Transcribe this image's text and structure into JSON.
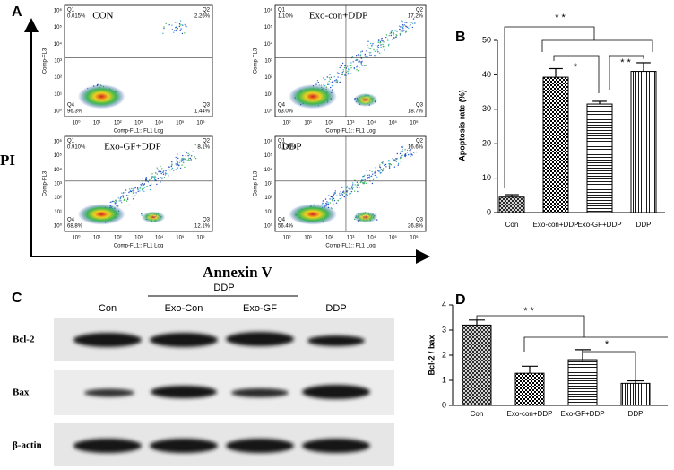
{
  "panel_a": {
    "label": "A",
    "y_axis_label": "PI",
    "x_axis_label": "Annexin V",
    "plot_y_label": "Comp-FL3",
    "plot_x_label": "Comp-FL1:: FL1 Log",
    "ticks": [
      "10⁰",
      "10¹",
      "10²",
      "10³",
      "10⁴",
      "10⁵",
      "10⁶"
    ],
    "plots": [
      {
        "title": "CON",
        "quadrants": [
          {
            "name": "Q1",
            "value": "0.015%"
          },
          {
            "name": "Q2",
            "value": "2.26%"
          },
          {
            "name": "Q4",
            "value": "96.3%"
          },
          {
            "name": "Q3",
            "value": "1.44%"
          }
        ]
      },
      {
        "title": "Exo-con+DDP",
        "quadrants": [
          {
            "name": "Q1",
            "value": "1.10%"
          },
          {
            "name": "Q2",
            "value": "17.2%"
          },
          {
            "name": "Q4",
            "value": "63.0%"
          },
          {
            "name": "Q3",
            "value": "18.7%"
          }
        ]
      },
      {
        "title": "Exo-GF+DDP",
        "quadrants": [
          {
            "name": "Q1",
            "value": "0.910%"
          },
          {
            "name": "Q2",
            "value": "8.1%"
          },
          {
            "name": "Q4",
            "value": "68.8%"
          },
          {
            "name": "Q3",
            "value": "12.1%"
          }
        ]
      },
      {
        "title": "DDP",
        "quadrants": [
          {
            "name": "Q1",
            "value": "0.175%"
          },
          {
            "name": "Q2",
            "value": "16.6%"
          },
          {
            "name": "Q4",
            "value": "56.4%"
          },
          {
            "name": "Q3",
            "value": "26.8%"
          }
        ]
      }
    ]
  },
  "panel_c": {
    "label": "C",
    "group_label": "DDP",
    "lanes": [
      "Con",
      "Exo-Con",
      "Exo-GF",
      "DDP"
    ],
    "rows": [
      "Bcl-2",
      "Bax",
      "β-actin"
    ]
  },
  "chart_data": [
    {
      "type": "bar",
      "panel_label": "B",
      "y_label": "Apoptosis rate (%)",
      "categories": [
        "Con",
        "Exo-con+DDP",
        "Exo-GF+DDP",
        "DDP"
      ],
      "values": [
        4.5,
        39.3,
        31.5,
        41
      ],
      "errors": [
        0.7,
        2.5,
        0.8,
        2.5
      ],
      "bar_patterns": [
        "crosshatch",
        "checker",
        "hlines",
        "vlines"
      ],
      "color": "#000000",
      "ylim": [
        0,
        50
      ],
      "yticks": [
        0,
        10,
        20,
        30,
        40,
        50
      ],
      "annotations": [
        "* *",
        "*",
        "* *"
      ]
    },
    {
      "type": "bar",
      "panel_label": "D",
      "y_label": "Bcl-2 / bax",
      "categories": [
        "Con",
        "Exo-con+DDP",
        "Exo-GF+DDP",
        "DDP"
      ],
      "values": [
        3.2,
        1.28,
        1.82,
        0.88
      ],
      "errors": [
        0.2,
        0.28,
        0.4,
        0.1
      ],
      "bar_patterns": [
        "crosshatch",
        "checker",
        "hlines",
        "vlines"
      ],
      "color": "#000000",
      "ylim": [
        0,
        4
      ],
      "yticks": [
        0,
        1,
        2,
        3,
        4
      ],
      "annotations": [
        "* *",
        "*"
      ]
    }
  ]
}
